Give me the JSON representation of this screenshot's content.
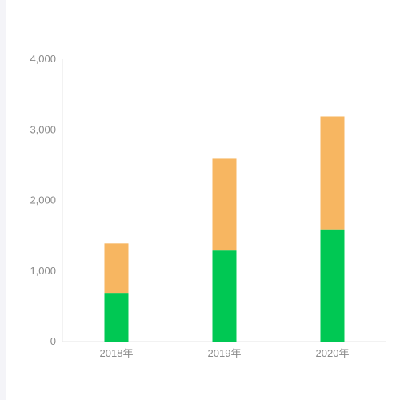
{
  "chart_data": {
    "type": "bar",
    "stacked": true,
    "categories": [
      "2018年",
      "2019年",
      "2020年"
    ],
    "series": [
      {
        "values": [
          690,
          1290,
          1590
        ],
        "color": "#00c853"
      },
      {
        "values": [
          700,
          1300,
          1600
        ],
        "color": "#f7b661"
      }
    ],
    "ylim": [
      0,
      4000
    ],
    "yticks": [
      "0",
      "1,000",
      "2,000",
      "3,000",
      "4,000"
    ],
    "ytick_values": [
      0,
      1000,
      2000,
      3000,
      4000
    ],
    "grid": false,
    "legend": "none",
    "axis_color": "#e6e6e6"
  }
}
